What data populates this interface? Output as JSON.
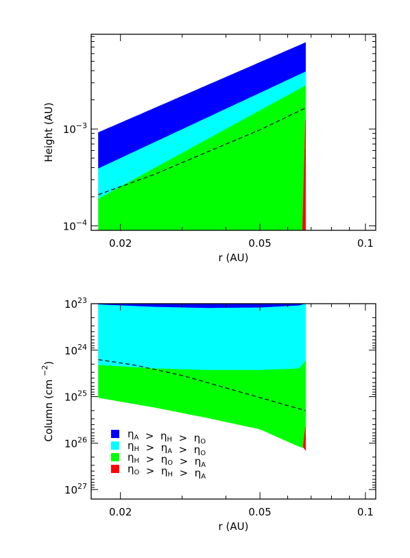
{
  "chart_data": [
    {
      "type": "area",
      "title": "",
      "xlabel": "r (AU)",
      "ylabel": "Height (AU)",
      "xscale": "log",
      "yscale": "log",
      "xlim": [
        0.0165,
        0.107
      ],
      "ylim": [
        9e-05,
        0.0095
      ],
      "x_ticks": [
        {
          "value": 0.02,
          "label": "0.02"
        },
        {
          "value": 0.05,
          "label": "0.05"
        },
        {
          "value": 0.1,
          "label": "0.1"
        }
      ],
      "y_ticks": [
        {
          "value": 0.0001,
          "base": "10",
          "exp": "−4"
        },
        {
          "value": 0.001,
          "base": "10",
          "exp": "−3"
        }
      ],
      "grid": false,
      "regions": [
        {
          "name": "eta_A > eta_H > eta_O",
          "color": "#0000ff",
          "x": [
            0.0173,
            0.0675
          ],
          "lower": [
            0.00039,
            0.0039
          ],
          "upper": [
            0.00092,
            0.0078
          ]
        },
        {
          "name": "eta_H > eta_A > eta_O",
          "color": "#00ffff",
          "x": [
            0.0173,
            0.0675
          ],
          "lower": [
            0.00019,
            0.0028
          ],
          "upper": [
            0.00039,
            0.0039
          ]
        },
        {
          "name": "eta_H > eta_O > eta_A",
          "color": "#00ff00",
          "x": [
            0.0173,
            0.0675
          ],
          "lower": [
            9e-05,
            9e-05
          ],
          "upper": [
            0.00019,
            0.0028
          ]
        },
        {
          "name": "eta_O > eta_H > eta_A",
          "color": "#ff0000",
          "x": [
            0.0662,
            0.0675
          ],
          "lower": [
            9e-05,
            9e-05
          ],
          "upper": [
            0.0001,
            0.00125
          ]
        }
      ],
      "dashed_line": {
        "x": [
          0.0173,
          0.025,
          0.035,
          0.05,
          0.0675
        ],
        "y": [
          0.00021,
          0.00034,
          0.00057,
          0.00098,
          0.00165
        ]
      }
    },
    {
      "type": "area",
      "title": "",
      "xlabel": "r (AU)",
      "ylabel": "Column (cm",
      "ylabel_exp": "−2",
      "ylabel_close": ")",
      "xscale": "log",
      "yscale": "log",
      "y_inverted": true,
      "xlim": [
        0.0165,
        0.107
      ],
      "ylim": [
        1e+23,
        1.6e+27
      ],
      "x_ticks": [
        {
          "value": 0.02,
          "label": "0.02"
        },
        {
          "value": 0.05,
          "label": "0.05"
        },
        {
          "value": 0.1,
          "label": "0.1"
        }
      ],
      "y_ticks": [
        {
          "value": 1e+23,
          "base": "10",
          "exp": "23"
        },
        {
          "value": 1e+24,
          "base": "10",
          "exp": "24"
        },
        {
          "value": 1e+25,
          "base": "10",
          "exp": "25"
        },
        {
          "value": 1e+26,
          "base": "10",
          "exp": "26"
        },
        {
          "value": 1e+27,
          "base": "10",
          "exp": "27"
        }
      ],
      "grid": false,
      "legend": {
        "position": "bottom-left",
        "entries": [
          {
            "color": "#0000ff",
            "s1": "A",
            "s2": "H",
            "s3": "O"
          },
          {
            "color": "#00ffff",
            "s1": "H",
            "s2": "A",
            "s3": "O"
          },
          {
            "color": "#00ff00",
            "s1": "H",
            "s2": "O",
            "s3": "A"
          },
          {
            "color": "#ff0000",
            "s1": "O",
            "s2": "H",
            "s3": "A"
          }
        ]
      },
      "regions": [
        {
          "name": "eta_A > eta_H > eta_O",
          "color": "#0000ff",
          "x": [
            0.0173,
            0.025,
            0.04,
            0.06,
            0.0675
          ],
          "lower": [
            1e+23,
            1e+23,
            1e+23,
            1e+23,
            1e+23
          ],
          "upper": [
            1.05e+23,
            1.18e+23,
            1.25e+23,
            1.2e+23,
            1.05e+23
          ]
        },
        {
          "name": "eta_H > eta_A > eta_O",
          "color": "#00ffff",
          "x": [
            0.0173,
            0.025,
            0.035,
            0.05,
            0.065,
            0.0675
          ],
          "lower": [
            1.05e+23,
            1.18e+23,
            1.25e+23,
            1.22e+23,
            1.1e+23,
            1e+23
          ],
          "upper": [
            2.1e+24,
            2.5e+24,
            2.7e+24,
            2.7e+24,
            2.5e+24,
            1.7e+24
          ]
        },
        {
          "name": "eta_H > eta_O > eta_A",
          "color": "#00ff00",
          "x": [
            0.0173,
            0.025,
            0.035,
            0.05,
            0.065,
            0.0675
          ],
          "lower": [
            2.1e+24,
            2.5e+24,
            2.7e+24,
            2.7e+24,
            2.5e+24,
            1.7e+24
          ],
          "upper": [
            1.05e+25,
            1.7e+25,
            2.8e+25,
            5e+25,
            1.2e+26,
            1.3e+26
          ]
        },
        {
          "name": "eta_O > eta_H > eta_A",
          "color": "#ff0000",
          "x": [
            0.0665,
            0.0675
          ],
          "lower": [
            1.1e+26,
            4.5e+25
          ],
          "upper": [
            1.2e+26,
            1.45e+26
          ]
        }
      ],
      "dashed_line": {
        "x": [
          0.0173,
          0.022,
          0.03,
          0.04,
          0.05,
          0.0675
        ],
        "y": [
          1.6e+24,
          2.1e+24,
          3.5e+24,
          6.5e+24,
          1.05e+25,
          2e+25
        ]
      }
    }
  ]
}
